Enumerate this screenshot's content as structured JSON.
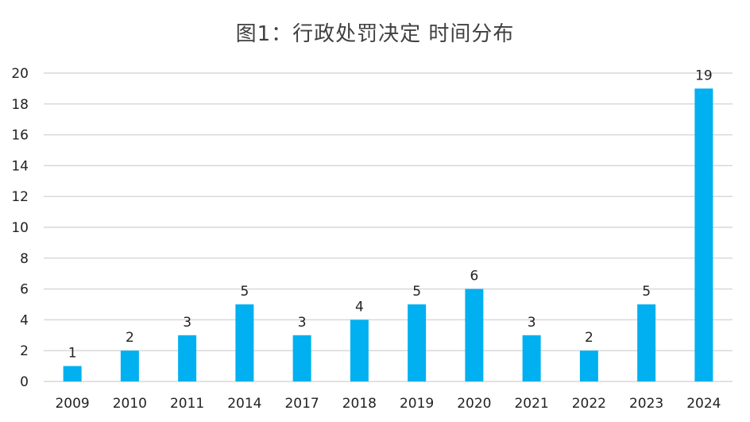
{
  "chart_data": {
    "type": "bar",
    "title": "图1：行政处罚决定 时间分布",
    "xlabel": "",
    "ylabel": "",
    "categories": [
      "2009",
      "2010",
      "2011",
      "2014",
      "2017",
      "2018",
      "2019",
      "2020",
      "2021",
      "2022",
      "2023",
      "2024"
    ],
    "values": [
      1,
      2,
      3,
      5,
      3,
      4,
      5,
      6,
      3,
      2,
      5,
      19
    ],
    "ylim": [
      0,
      20
    ],
    "yticks": [
      0,
      2,
      4,
      6,
      8,
      10,
      12,
      14,
      16,
      18,
      20
    ],
    "grid": true,
    "data_labels": true,
    "bar_color": "#00B0F0",
    "grid_color": "#D9D9D9"
  }
}
